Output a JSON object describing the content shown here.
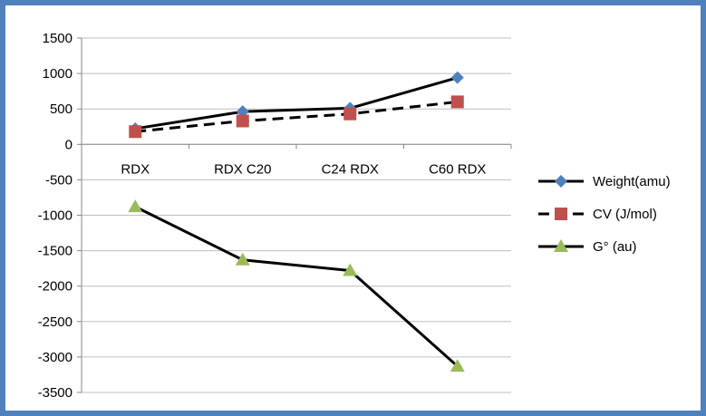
{
  "chart_data": {
    "type": "line",
    "categories": [
      "RDX",
      "RDX C20",
      "C24 RDX",
      "C60 RDX"
    ],
    "ylim": [
      -3500,
      1500
    ],
    "y_ticks": [
      1500,
      1000,
      500,
      0,
      -500,
      -1000,
      -1500,
      -2000,
      -2500,
      -3000,
      -3500
    ],
    "y_tick_labels": [
      "1500",
      "1000",
      "500",
      "0",
      "-500",
      "-1000",
      "-1500",
      "-2000",
      "-2500",
      "-3000",
      "-3500"
    ],
    "grid": true,
    "legend_position": "right",
    "series": [
      {
        "name": "Weight(amu)",
        "values": [
          222,
          462,
          510,
          942
        ],
        "color": "#4f81bd",
        "marker": "diamond",
        "dash": "solid"
      },
      {
        "name": "CV (J/mol)",
        "values": [
          180,
          330,
          430,
          600
        ],
        "color": "#c0504d",
        "marker": "square",
        "dash": "dashed"
      },
      {
        "name": "G° (au)",
        "values": [
          -880,
          -1630,
          -1780,
          -3130
        ],
        "color": "#9bbb59",
        "marker": "triangle",
        "dash": "solid"
      }
    ]
  }
}
